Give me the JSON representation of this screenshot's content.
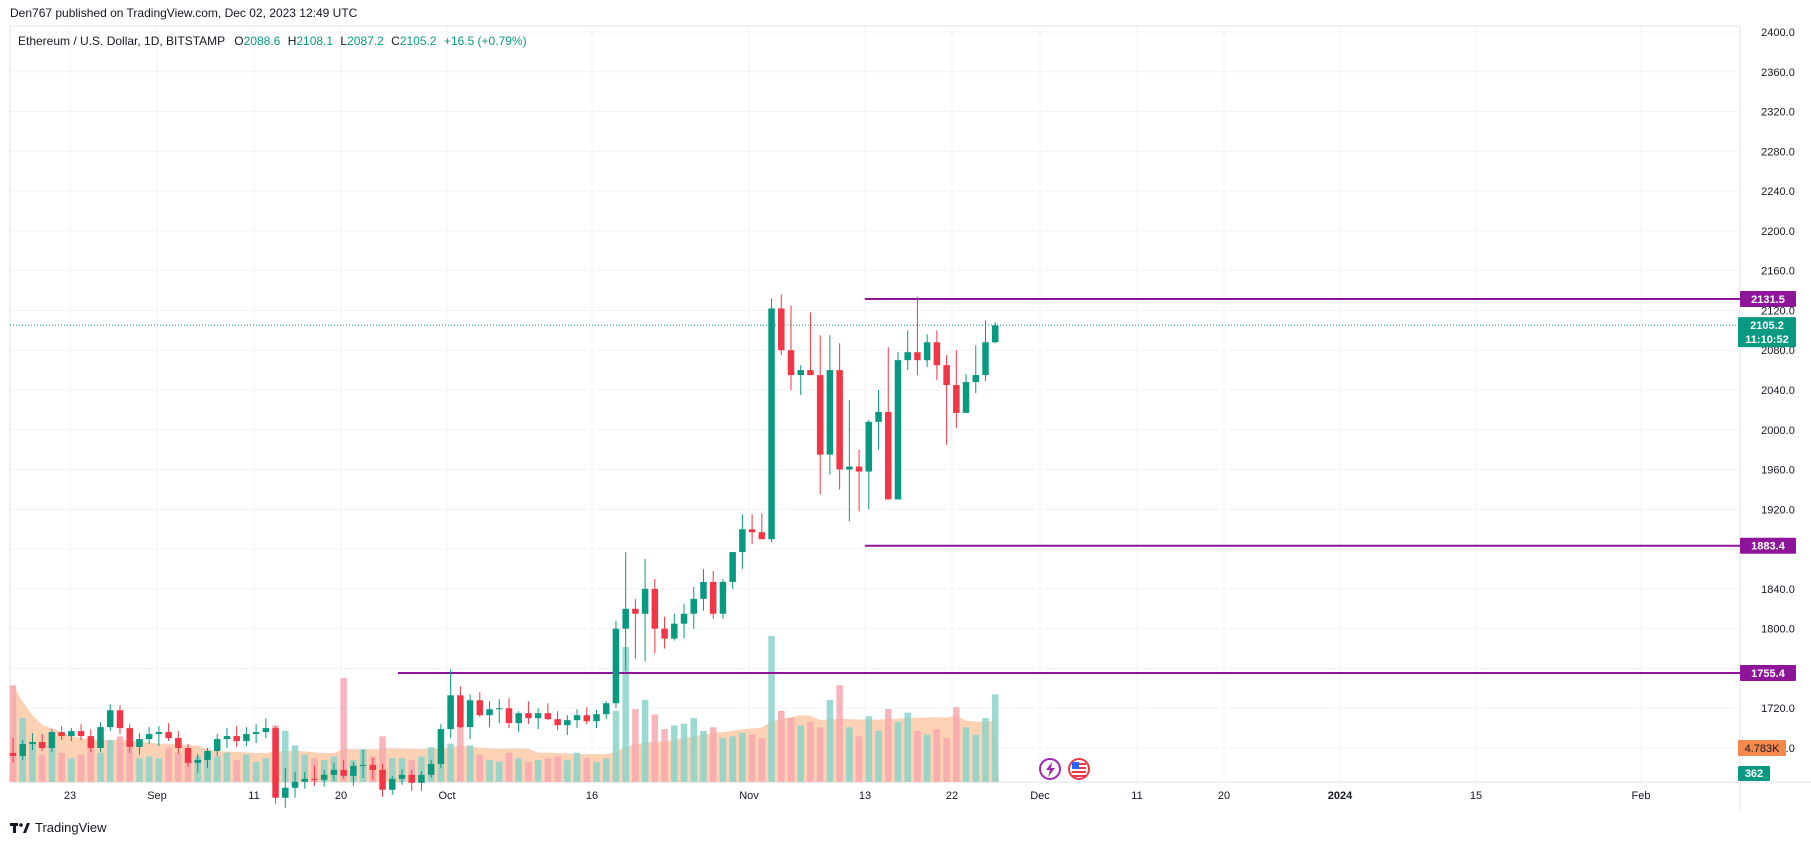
{
  "header": {
    "published": "Den767 published on TradingView.com, Dec 02, 2023 12:49 UTC"
  },
  "legend": {
    "symbol": "Ethereum / U.S. Dollar, 1D, BITSTAMP",
    "o_label": "O",
    "o": "2088.6",
    "h_label": "H",
    "h": "2108.1",
    "l_label": "L",
    "l": "2087.2",
    "c_label": "C",
    "c": "2105.2",
    "change": "+16.5 (+0.79%)"
  },
  "footer": {
    "brand": "TradingView"
  },
  "colors": {
    "up": "#089981",
    "down": "#f23645",
    "up_volume": "#8ad3ca",
    "down_volume": "#f7a8ae",
    "level_line": "#8e1599",
    "price_badge": "#089981",
    "volume_badge": "#f5884b",
    "volume_ma_fill": "#fcc9a7"
  },
  "chart_data": {
    "type": "candlestick",
    "symbol": "Ethereum / U.S. Dollar",
    "interval": "1D",
    "exchange": "BITSTAMP",
    "yaxis": {
      "ticks": [
        "2400.0",
        "2360.0",
        "2320.0",
        "2280.0",
        "2240.0",
        "2200.0",
        "2160.0",
        "2120.0",
        "2080.0",
        "2040.0",
        "2000.0",
        "1960.0",
        "1920.0",
        "1880.0",
        "1840.0",
        "1800.0",
        "1760.0",
        "1720.0",
        "1680.0"
      ],
      "range": [
        1670,
        2400
      ]
    },
    "xaxis": {
      "ticks": [
        "23",
        "Sep",
        "11",
        "20",
        "Oct",
        "16",
        "Nov",
        "13",
        "22",
        "Dec",
        "11",
        "20",
        "2024",
        "15",
        "Feb"
      ]
    },
    "horizontal_levels": [
      {
        "value": 2131.5,
        "label": "2131.5",
        "start_day": 88
      },
      {
        "value": 1883.4,
        "label": "1883.4",
        "start_day": 88
      },
      {
        "value": 1755.4,
        "label": "1755.4",
        "start_day": 40
      }
    ],
    "last_price": {
      "value": 2105.2,
      "label": "2105.2",
      "countdown": "11:10:52"
    },
    "volume": {
      "last_label": "4.783K",
      "count_label": "362",
      "peak": 8.0
    },
    "candles_start_day": 0,
    "candles": [
      [
        1675,
        1690,
        1665,
        1672,
        5.3
      ],
      [
        1672,
        1688,
        1668,
        1684,
        3.5
      ],
      [
        1684,
        1695,
        1678,
        1686,
        2.2
      ],
      [
        1686,
        1694,
        1677,
        1680,
        1.5
      ],
      [
        1680,
        1699,
        1676,
        1696,
        2.2
      ],
      [
        1696,
        1702,
        1688,
        1692,
        1.6
      ],
      [
        1692,
        1700,
        1687,
        1697,
        1.3
      ],
      [
        1697,
        1704,
        1688,
        1692,
        1.5
      ],
      [
        1692,
        1699,
        1676,
        1680,
        2.2
      ],
      [
        1680,
        1706,
        1676,
        1701,
        1.6
      ],
      [
        1701,
        1724,
        1697,
        1718,
        2.3
      ],
      [
        1718,
        1723,
        1694,
        1700,
        2.5
      ],
      [
        1700,
        1704,
        1675,
        1681,
        1.9
      ],
      [
        1681,
        1695,
        1673,
        1689,
        1.3
      ],
      [
        1689,
        1701,
        1684,
        1694,
        1.4
      ],
      [
        1694,
        1702,
        1682,
        1696,
        1.3
      ],
      [
        1696,
        1705,
        1687,
        1690,
        1.9
      ],
      [
        1690,
        1697,
        1674,
        1680,
        1.6
      ],
      [
        1680,
        1684,
        1661,
        1665,
        1.3
      ],
      [
        1665,
        1674,
        1655,
        1668,
        1.4
      ],
      [
        1668,
        1680,
        1660,
        1677,
        1.5
      ],
      [
        1677,
        1694,
        1672,
        1689,
        1.4
      ],
      [
        1689,
        1700,
        1680,
        1692,
        1.6
      ],
      [
        1692,
        1702,
        1681,
        1687,
        1.2
      ],
      [
        1687,
        1701,
        1682,
        1694,
        1.5
      ],
      [
        1694,
        1704,
        1685,
        1696,
        1.1
      ],
      [
        1696,
        1710,
        1690,
        1700,
        1.3
      ],
      [
        1700,
        1702,
        1624,
        1630,
        3.1
      ],
      [
        1630,
        1660,
        1620,
        1640,
        2.8
      ],
      [
        1640,
        1656,
        1630,
        1646,
        2.0
      ],
      [
        1646,
        1656,
        1639,
        1649,
        1.5
      ],
      [
        1649,
        1662,
        1642,
        1648,
        1.3
      ],
      [
        1648,
        1658,
        1641,
        1653,
        1.2
      ],
      [
        1653,
        1665,
        1647,
        1658,
        1.4
      ],
      [
        1658,
        1668,
        1649,
        1652,
        5.7
      ],
      [
        1652,
        1666,
        1642,
        1662,
        1.2
      ],
      [
        1662,
        1678,
        1650,
        1663,
        1.8
      ],
      [
        1663,
        1670,
        1648,
        1658,
        1.4
      ],
      [
        1658,
        1664,
        1631,
        1638,
        2.5
      ],
      [
        1638,
        1652,
        1633,
        1649,
        1.3
      ],
      [
        1649,
        1659,
        1643,
        1653,
        1.3
      ],
      [
        1653,
        1658,
        1637,
        1645,
        1.2
      ],
      [
        1645,
        1657,
        1637,
        1653,
        1.4
      ],
      [
        1653,
        1668,
        1650,
        1664,
        1.9
      ],
      [
        1664,
        1704,
        1660,
        1699,
        1.6
      ],
      [
        1699,
        1759,
        1690,
        1733,
        2.1
      ],
      [
        1733,
        1742,
        1700,
        1701,
        3.3
      ],
      [
        1701,
        1734,
        1689,
        1728,
        2.0
      ],
      [
        1728,
        1736,
        1711,
        1713,
        1.5
      ],
      [
        1713,
        1727,
        1701,
        1719,
        1.2
      ],
      [
        1719,
        1729,
        1705,
        1720,
        1.1
      ],
      [
        1720,
        1730,
        1700,
        1705,
        1.6
      ],
      [
        1705,
        1717,
        1696,
        1715,
        1.3
      ],
      [
        1715,
        1727,
        1704,
        1710,
        1.1
      ],
      [
        1710,
        1720,
        1699,
        1715,
        1.2
      ],
      [
        1715,
        1725,
        1708,
        1709,
        1.3
      ],
      [
        1709,
        1717,
        1698,
        1703,
        1.4
      ],
      [
        1703,
        1713,
        1693,
        1708,
        1.2
      ],
      [
        1708,
        1719,
        1700,
        1713,
        1.6
      ],
      [
        1713,
        1721,
        1704,
        1707,
        1.3
      ],
      [
        1707,
        1718,
        1700,
        1714,
        1.1
      ],
      [
        1714,
        1727,
        1709,
        1725,
        1.3
      ],
      [
        1725,
        1808,
        1720,
        1800,
        3.9
      ],
      [
        1800,
        1877,
        1758,
        1820,
        7.4
      ],
      [
        1820,
        1830,
        1770,
        1815,
        4.0
      ],
      [
        1815,
        1870,
        1767,
        1840,
        4.5
      ],
      [
        1840,
        1850,
        1775,
        1800,
        3.7
      ],
      [
        1800,
        1812,
        1780,
        1790,
        2.9
      ],
      [
        1790,
        1815,
        1788,
        1805,
        3.1
      ],
      [
        1805,
        1825,
        1790,
        1815,
        3.2
      ],
      [
        1815,
        1842,
        1800,
        1830,
        3.5
      ],
      [
        1830,
        1860,
        1818,
        1847,
        2.8
      ],
      [
        1847,
        1858,
        1810,
        1815,
        3.0
      ],
      [
        1815,
        1850,
        1810,
        1847,
        2.4
      ],
      [
        1847,
        1872,
        1840,
        1877,
        2.5
      ],
      [
        1877,
        1915,
        1860,
        1900,
        2.7
      ],
      [
        1900,
        1915,
        1885,
        1897,
        2.6
      ],
      [
        1897,
        1916,
        1890,
        1890,
        2.4
      ],
      [
        1890,
        2132,
        1887,
        2122,
        8.0
      ],
      [
        2122,
        2136,
        2075,
        2080,
        3.9
      ],
      [
        2080,
        2125,
        2040,
        2055,
        3.5
      ],
      [
        2055,
        2065,
        2035,
        2060,
        3.1
      ],
      [
        2060,
        2118,
        2055,
        2055,
        3.3
      ],
      [
        2055,
        2095,
        1935,
        1975,
        3.0
      ],
      [
        1975,
        2095,
        1955,
        2060,
        4.5
      ],
      [
        2060,
        2087,
        1940,
        1960,
        5.3
      ],
      [
        1960,
        2030,
        1908,
        1963,
        3.0
      ],
      [
        1963,
        1980,
        1918,
        1958,
        2.5
      ],
      [
        1958,
        2010,
        1920,
        2008,
        3.6
      ],
      [
        2008,
        2040,
        1980,
        2018,
        2.8
      ],
      [
        2018,
        2083,
        1930,
        1930,
        4.0
      ],
      [
        1930,
        2078,
        1930,
        2070,
        3.3
      ],
      [
        2070,
        2100,
        2060,
        2078,
        3.8
      ],
      [
        2078,
        2134,
        2055,
        2070,
        2.8
      ],
      [
        2070,
        2096,
        2063,
        2088,
        2.6
      ],
      [
        2088,
        2100,
        2050,
        2065,
        2.9
      ],
      [
        2065,
        2075,
        1985,
        2045,
        2.4
      ],
      [
        2045,
        2080,
        2002,
        2017,
        4.1
      ],
      [
        2017,
        2056,
        2020,
        2048,
        3.0
      ],
      [
        2048,
        2085,
        2037,
        2055,
        2.6
      ],
      [
        2055,
        2110,
        2049,
        2088,
        3.5
      ],
      [
        2088,
        2108,
        2087,
        2105,
        4.8
      ]
    ]
  }
}
